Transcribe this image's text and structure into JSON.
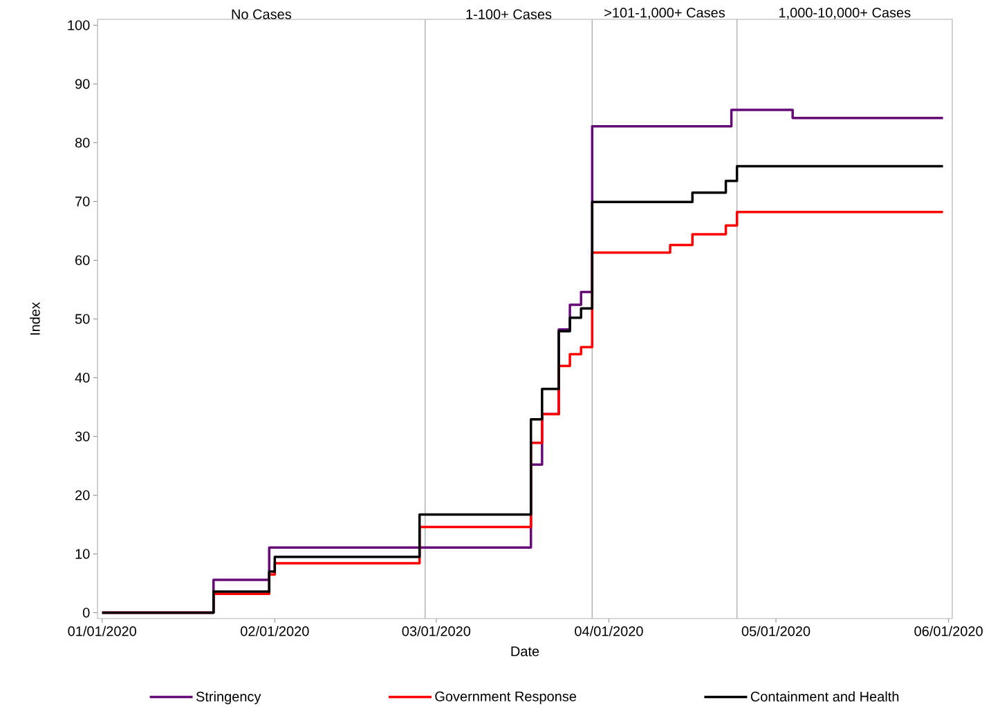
{
  "chart_data": {
    "type": "step",
    "xlabel": "Date",
    "ylabel": "Index",
    "xlim": [
      "2019-12-31T04:00",
      "2020-06-01T16:00"
    ],
    "ylim": [
      -1,
      101
    ],
    "xticks": [
      {
        "value": "2020-01-01",
        "label": "01/01/2020"
      },
      {
        "value": "2020-02-01",
        "label": "02/01/2020"
      },
      {
        "value": "2020-03-01",
        "label": "03/01/2020"
      },
      {
        "value": "2020-04-01",
        "label": "04/01/2020"
      },
      {
        "value": "2020-05-01",
        "label": "05/01/2020"
      },
      {
        "value": "2020-06-01",
        "label": "06/01/2020"
      }
    ],
    "yticks": [
      0,
      10,
      20,
      30,
      40,
      50,
      60,
      70,
      80,
      90,
      100
    ],
    "ref_lines": [
      {
        "axis": "x",
        "value": "2020-02-28",
        "color": "#b4b4b4"
      },
      {
        "axis": "x",
        "value": "2020-03-29",
        "color": "#b4b4b4"
      },
      {
        "axis": "x",
        "value": "2020-04-24",
        "color": "#b4b4b4"
      }
    ],
    "annotations": [
      "No Cases",
      "1-100+ Cases",
      ">101-1,000+ Cases",
      "1,000-10,000+ Cases"
    ],
    "legend": "bottom",
    "line_style": "solid",
    "marker": "none",
    "series": [
      {
        "name": "Stringency",
        "color": "#660a78",
        "x": [
          "2020-01-01",
          "2020-01-21",
          "2020-01-31",
          "2020-03-18",
          "2020-03-20",
          "2020-03-23",
          "2020-03-25",
          "2020-03-27",
          "2020-03-29",
          "2020-04-23",
          "2020-05-04",
          "2020-05-31"
        ],
        "values": [
          0,
          5.6,
          11.1,
          25.2,
          33.8,
          48.2,
          52.4,
          54.6,
          82.8,
          85.6,
          84.2,
          84.2
        ]
      },
      {
        "name": "Government Response",
        "color": "#ff0000",
        "x": [
          "2020-01-01",
          "2020-01-21",
          "2020-01-31",
          "2020-02-01",
          "2020-02-27",
          "2020-03-18",
          "2020-03-20",
          "2020-03-23",
          "2020-03-25",
          "2020-03-27",
          "2020-03-29",
          "2020-04-12",
          "2020-04-16",
          "2020-04-22",
          "2020-04-24",
          "2020-05-31"
        ],
        "values": [
          0,
          3.2,
          6.5,
          8.4,
          14.6,
          28.9,
          33.8,
          42,
          44,
          45.2,
          61.3,
          62.6,
          64.4,
          65.9,
          68.2,
          68.2
        ]
      },
      {
        "name": "Containment and Health",
        "color": "#000000",
        "x": [
          "2020-01-01",
          "2020-01-21",
          "2020-01-31",
          "2020-02-01",
          "2020-02-27",
          "2020-03-18",
          "2020-03-20",
          "2020-03-23",
          "2020-03-25",
          "2020-03-27",
          "2020-03-29",
          "2020-04-16",
          "2020-04-22",
          "2020-04-24",
          "2020-05-31"
        ],
        "values": [
          0,
          3.6,
          7,
          9.5,
          16.7,
          32.9,
          38.1,
          47.9,
          50.2,
          51.8,
          69.9,
          71.5,
          73.5,
          76,
          76
        ]
      }
    ]
  }
}
